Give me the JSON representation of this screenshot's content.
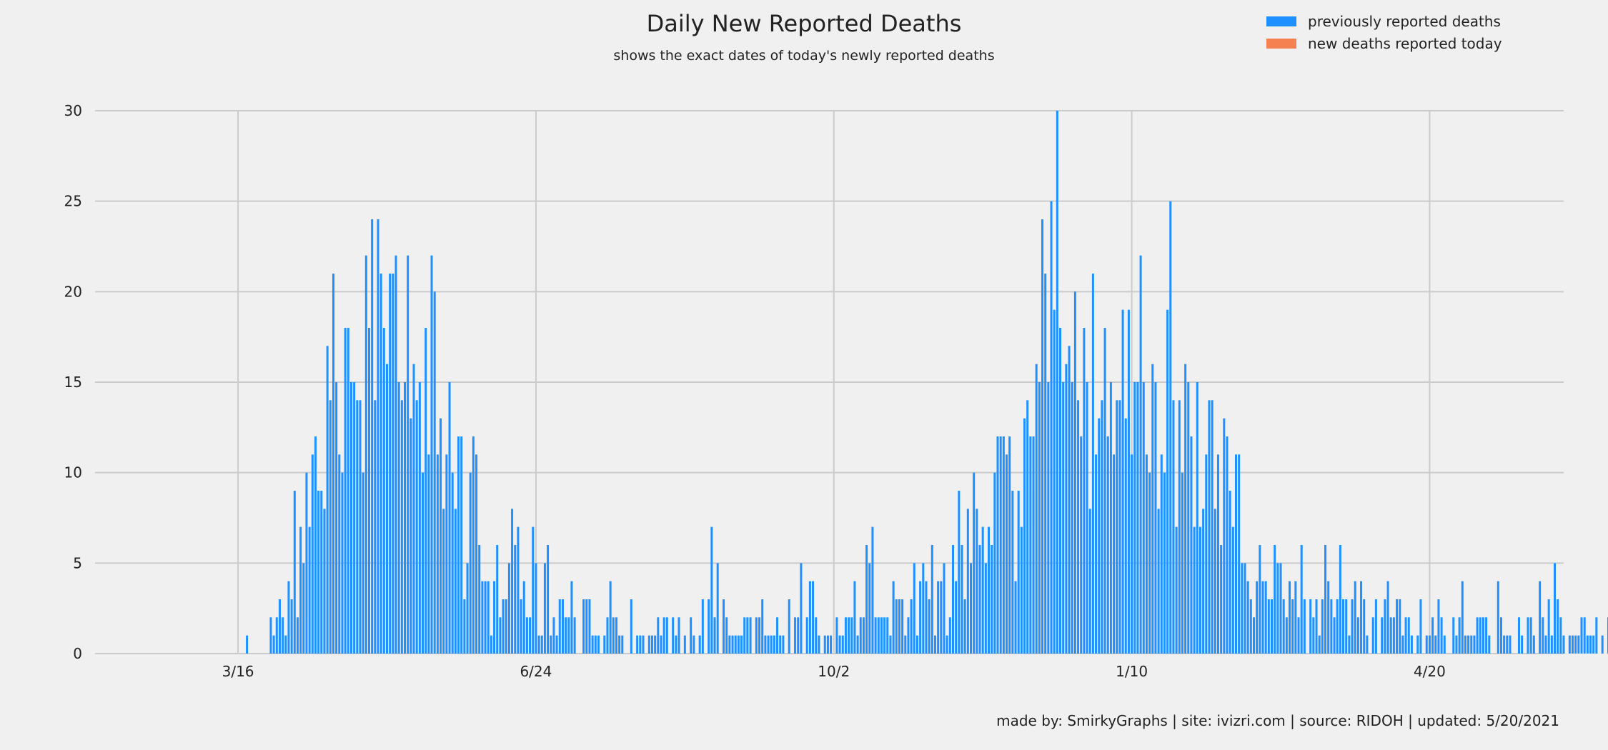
{
  "colors": {
    "background": "#f0f0f0",
    "grid": "#cbcbcb",
    "previous": "#1e90ff",
    "new_today": "#f4814f"
  },
  "chart_data": {
    "type": "bar",
    "title": "Daily New Reported Deaths",
    "subtitle": "shows the exact dates of today's newly reported deaths",
    "xlabel": "",
    "ylabel": "",
    "ylim": [
      0,
      30
    ],
    "yticks": [
      0,
      5,
      10,
      15,
      20,
      25,
      30
    ],
    "x_start": "2020-03-16",
    "xlim": [
      "2020-01-28",
      "2021-06-04"
    ],
    "xticks": [
      {
        "label": "3/16",
        "date": "2020-03-16"
      },
      {
        "label": "6/24",
        "date": "2020-06-24"
      },
      {
        "label": "10/2",
        "date": "2020-10-02"
      },
      {
        "label": "1/10",
        "date": "2021-01-10"
      },
      {
        "label": "4/20",
        "date": "2021-04-20"
      }
    ],
    "grid": true,
    "legend_position": "top-right",
    "series": [
      {
        "name": "previously reported deaths",
        "color": "#1e90ff",
        "values": [
          0,
          0,
          0,
          1,
          0,
          0,
          0,
          0,
          0,
          0,
          0,
          2,
          1,
          2,
          3,
          2,
          1,
          4,
          3,
          9,
          2,
          7,
          5,
          10,
          7,
          11,
          12,
          9,
          9,
          8,
          17,
          14,
          21,
          15,
          11,
          10,
          18,
          18,
          15,
          15,
          14,
          14,
          10,
          22,
          18,
          24,
          14,
          24,
          21,
          18,
          16,
          21,
          21,
          22,
          15,
          14,
          15,
          22,
          13,
          16,
          14,
          15,
          10,
          18,
          11,
          22,
          20,
          11,
          13,
          8,
          11,
          15,
          10,
          8,
          12,
          12,
          3,
          5,
          10,
          12,
          11,
          6,
          4,
          4,
          4,
          1,
          4,
          6,
          2,
          3,
          3,
          5,
          8,
          6,
          7,
          3,
          4,
          2,
          2,
          7,
          5,
          1,
          1,
          5,
          6,
          1,
          2,
          1,
          3,
          3,
          2,
          2,
          4,
          2,
          0,
          0,
          3,
          3,
          3,
          1,
          1,
          1,
          0,
          1,
          2,
          4,
          2,
          2,
          1,
          1,
          0,
          0,
          3,
          0,
          1,
          1,
          1,
          0,
          1,
          1,
          1,
          2,
          1,
          2,
          2,
          0,
          2,
          1,
          2,
          0,
          1,
          0,
          2,
          1,
          0,
          1,
          3,
          0,
          3,
          7,
          2,
          5,
          0,
          3,
          2,
          1,
          1,
          1,
          1,
          1,
          2,
          2,
          2,
          0,
          2,
          2,
          3,
          1,
          1,
          1,
          1,
          2,
          1,
          1,
          0,
          3,
          0,
          2,
          2,
          5,
          0,
          2,
          4,
          4,
          2,
          1,
          0,
          1,
          1,
          1,
          0,
          2,
          1,
          1,
          2,
          2,
          2,
          4,
          1,
          2,
          2,
          6,
          5,
          7,
          2,
          2,
          2,
          2,
          2,
          1,
          4,
          3,
          3,
          3,
          1,
          2,
          3,
          5,
          1,
          4,
          5,
          4,
          3,
          6,
          1,
          4,
          4,
          5,
          1,
          2,
          6,
          4,
          9,
          6,
          3,
          8,
          5,
          10,
          8,
          6,
          7,
          5,
          7,
          6,
          10,
          12,
          12,
          12,
          11,
          12,
          9,
          4,
          9,
          7,
          13,
          14,
          12,
          12,
          16,
          15,
          24,
          21,
          15,
          25,
          19,
          30,
          18,
          15,
          16,
          17,
          15,
          20,
          14,
          12,
          18,
          15,
          8,
          21,
          11,
          13,
          14,
          18,
          12,
          15,
          11,
          14,
          14,
          19,
          13,
          19,
          11,
          15,
          15,
          22,
          15,
          11,
          10,
          16,
          15,
          8,
          11,
          10,
          19,
          25,
          14,
          7,
          14,
          10,
          16,
          15,
          12,
          7,
          15,
          7,
          8,
          11,
          14,
          14,
          8,
          11,
          6,
          13,
          12,
          9,
          7,
          11,
          11,
          5,
          5,
          4,
          3,
          2,
          4,
          6,
          4,
          4,
          3,
          3,
          6,
          5,
          5,
          3,
          2,
          4,
          3,
          4,
          2,
          6,
          3,
          0,
          3,
          2,
          3,
          1,
          3,
          6,
          4,
          3,
          2,
          3,
          6,
          3,
          3,
          1,
          3,
          4,
          2,
          4,
          3,
          1,
          0,
          2,
          3,
          0,
          2,
          3,
          4,
          2,
          2,
          3,
          3,
          1,
          2,
          2,
          1,
          0,
          1,
          3,
          0,
          1,
          1,
          2,
          1,
          3,
          2,
          1,
          0,
          0,
          2,
          1,
          2,
          4,
          1,
          1,
          1,
          1,
          2,
          2,
          2,
          2,
          1,
          0,
          0,
          4,
          2,
          1,
          1,
          1,
          0,
          0,
          2,
          1,
          0,
          2,
          2,
          1,
          0,
          4,
          2,
          1,
          3,
          1,
          5,
          3,
          2,
          1,
          0,
          1,
          1,
          1,
          1,
          2,
          2,
          1,
          1,
          1,
          2,
          0,
          1,
          0,
          2,
          1
        ]
      },
      {
        "name": "new deaths reported today",
        "color": "#f4814f",
        "values": []
      }
    ],
    "legend": [
      {
        "label": "previously reported deaths",
        "color": "#1e90ff"
      },
      {
        "label": "new deaths reported today",
        "color": "#f4814f"
      }
    ]
  },
  "footer": {
    "credit": "made by: SmirkyGraphs  |  site: ivizri.com  |  source: RIDOH  |  updated: 5/20/2021"
  }
}
